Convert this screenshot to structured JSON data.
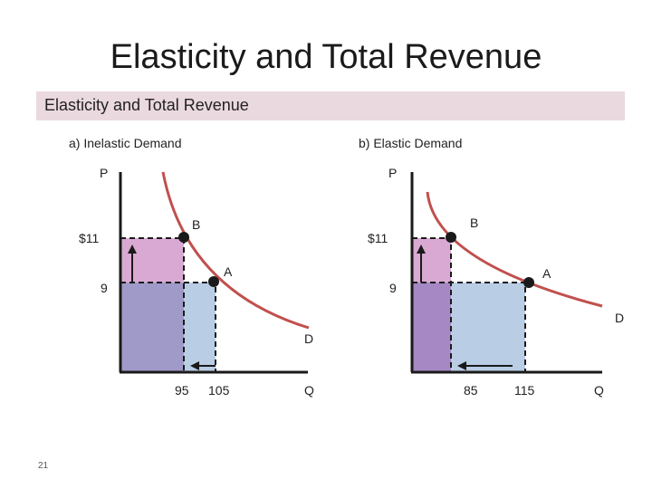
{
  "slide": {
    "title": "Elasticity and Total Revenue",
    "banner": "Elasticity and Total Revenue",
    "number": "21"
  },
  "panel_a": {
    "heading": "a) Inelastic Demand",
    "y_axis_label": "P",
    "x_axis_label": "Q",
    "price_high": "$11",
    "price_low": "9",
    "qty_low": "95",
    "qty_high": "105",
    "point_b": "B",
    "point_a": "A",
    "curve_label": "D"
  },
  "panel_b": {
    "heading": "b) Elastic Demand",
    "y_axis_label": "P",
    "x_axis_label": "Q",
    "price_high": "$11",
    "price_low": "9",
    "qty_low": "85",
    "qty_high": "115",
    "point_b": "B",
    "point_a": "A",
    "curve_label": "D"
  },
  "colors": {
    "gained_revenue": "#d9a9d3",
    "common_revenue": "#a09ac9",
    "lost_revenue": "#b9cde4",
    "demand_curve": "#c0504d",
    "axis": "#1a1a1a"
  }
}
